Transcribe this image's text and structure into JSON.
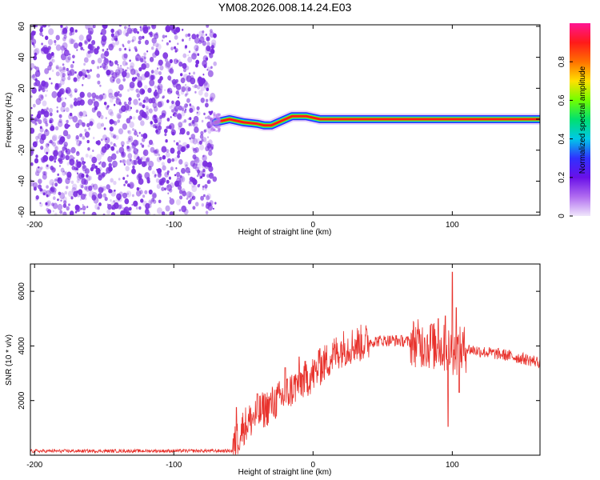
{
  "figure": {
    "title": "YM08.2026.008.14.24.E03"
  },
  "colors": {
    "speckle": "#7a2ee0",
    "snr_line": "#e8322c",
    "colormap": [
      "#f0e6fb",
      "#b06cf0",
      "#6a10e8",
      "#3030ff",
      "#00c8e8",
      "#00e070",
      "#70ff00",
      "#ffe000",
      "#ff7000",
      "#ff1a1a",
      "#ff1493"
    ]
  },
  "chart_data": [
    {
      "type": "heatmap",
      "id": "spectrogram",
      "xlabel": "Height of straight line (km)",
      "ylabel": "Frequency (Hz)",
      "xlim": [
        -203,
        163
      ],
      "ylim": [
        -62,
        61
      ],
      "xticks": [
        -200,
        -100,
        0,
        100
      ],
      "yticks": [
        -60,
        -40,
        -20,
        0,
        20,
        40,
        60
      ],
      "noise_region_x": [
        -203,
        -70
      ],
      "track": [
        [
          -70,
          -2
        ],
        [
          -60,
          0
        ],
        [
          -50,
          -2
        ],
        [
          -40,
          -3
        ],
        [
          -35,
          -4
        ],
        [
          -30,
          -4
        ],
        [
          -25,
          -2
        ],
        [
          -15,
          2
        ],
        [
          -5,
          2
        ],
        [
          5,
          0
        ],
        [
          25,
          0
        ],
        [
          50,
          0
        ],
        [
          65,
          0
        ],
        [
          80,
          0
        ],
        [
          90,
          0
        ],
        [
          100,
          0
        ],
        [
          163,
          0
        ]
      ],
      "colorbar": {
        "label": "Normalized spectral amplitude",
        "range": [
          0,
          1
        ],
        "ticks": [
          0,
          0.2,
          0.4,
          0.6,
          0.8
        ]
      }
    },
    {
      "type": "line",
      "id": "snr",
      "xlabel": "Height of straight line (km)",
      "ylabel": "SNR (10 * v/v)",
      "xlim": [
        -203,
        163
      ],
      "ylim": [
        0,
        7000
      ],
      "xticks": [
        -200,
        -100,
        0,
        100
      ],
      "yticks": [
        2000,
        4000,
        6000
      ],
      "envelope": {
        "x": [
          -203,
          -58,
          -55,
          -50,
          -40,
          -30,
          -20,
          -10,
          0,
          10,
          20,
          30,
          40,
          50,
          60,
          70,
          80,
          90,
          95,
          100,
          105,
          110,
          120,
          140,
          163
        ],
        "y": [
          150,
          160,
          550,
          1050,
          1500,
          1850,
          2200,
          2650,
          2950,
          3450,
          3900,
          4050,
          4150,
          4200,
          4200,
          4150,
          4050,
          3950,
          3900,
          3800,
          3800,
          3900,
          3800,
          3650,
          3400
        ]
      },
      "spikes": [
        [
          -55,
          1750
        ],
        [
          -40,
          2250
        ],
        [
          -20,
          3200
        ],
        [
          -10,
          3600
        ],
        [
          5,
          3900
        ],
        [
          80,
          4300
        ],
        [
          85,
          4800
        ],
        [
          90,
          5000
        ],
        [
          95,
          5100
        ],
        [
          97,
          1050
        ],
        [
          100,
          6700
        ],
        [
          103,
          5400
        ],
        [
          105,
          2300
        ]
      ]
    }
  ]
}
